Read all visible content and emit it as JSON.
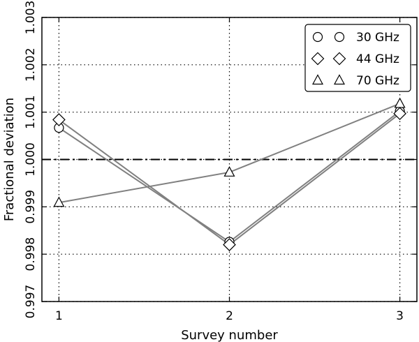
{
  "chart_data": {
    "type": "line",
    "title": "",
    "xlabel": "Survey number",
    "ylabel": "Fractional deviation",
    "x": [
      1,
      2,
      3
    ],
    "xticks": [
      "1",
      "2",
      "3"
    ],
    "xlim": [
      0.9,
      3.1
    ],
    "yticks": [
      "0.997",
      "0.998",
      "0.999",
      "1.000",
      "1.001",
      "1.002",
      "1.003"
    ],
    "ylim": [
      0.997,
      1.003
    ],
    "grid": true,
    "reference_line": {
      "y": 1.0,
      "style": "dash-dot",
      "color": "#000000"
    },
    "legend_position": "top-right",
    "series": [
      {
        "name": "30 GHz",
        "marker": "circle",
        "color": "#808080",
        "values": [
          1.00067,
          0.99826,
          1.00102
        ]
      },
      {
        "name": "44 GHz",
        "marker": "diamond",
        "color": "#808080",
        "values": [
          1.00084,
          0.9982,
          1.00097
        ]
      },
      {
        "name": "70 GHz",
        "marker": "triangle",
        "color": "#808080",
        "values": [
          0.99909,
          0.99973,
          1.00118
        ]
      }
    ]
  }
}
